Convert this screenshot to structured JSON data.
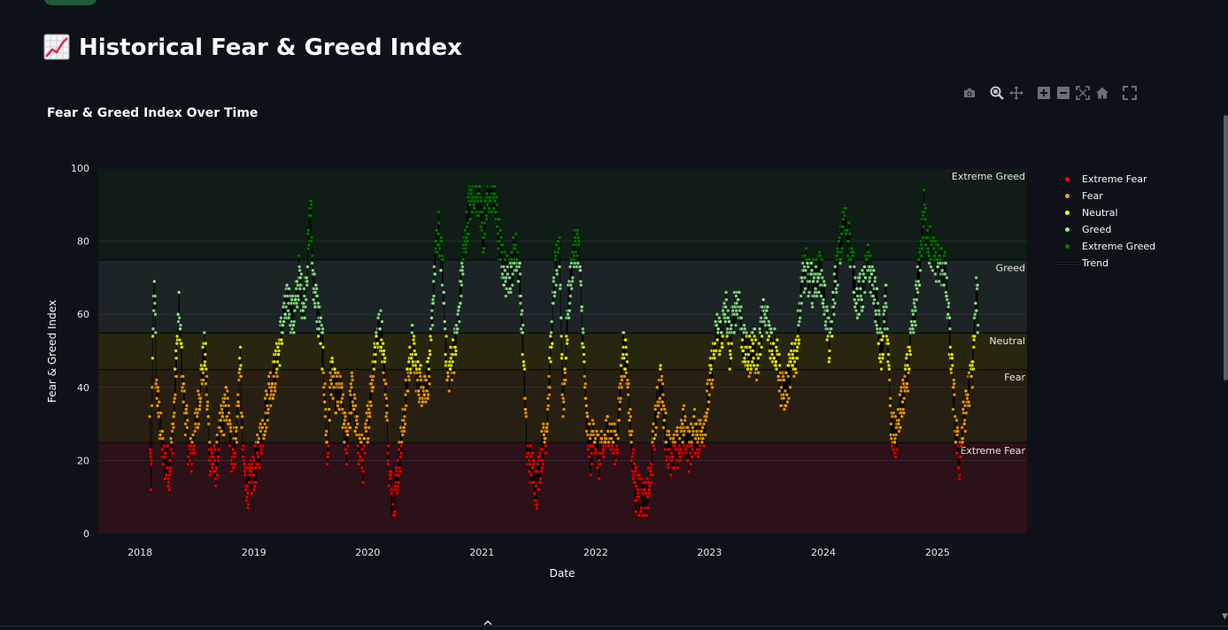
{
  "page": {
    "title": "Historical Fear & Greed Index",
    "title_icon": "chart-increasing-emoji"
  },
  "modebar": [
    {
      "name": "download-png",
      "icon": "camera-icon"
    },
    {
      "name": "zoom",
      "icon": "zoom-icon",
      "active": true
    },
    {
      "name": "pan",
      "icon": "pan-icon"
    },
    {
      "name": "zoom-in",
      "icon": "zoom-in-icon"
    },
    {
      "name": "zoom-out",
      "icon": "zoom-out-icon"
    },
    {
      "name": "autoscale",
      "icon": "autoscale-icon"
    },
    {
      "name": "reset-axes",
      "icon": "home-icon"
    },
    {
      "name": "fullscreen",
      "icon": "fullscreen-icon"
    }
  ],
  "chart_data": {
    "type": "scatter",
    "title": "Fear & Greed Index Over Time",
    "xlabel": "Date",
    "ylabel": "Fear & Greed Index",
    "ylim": [
      0,
      100
    ],
    "xlim": [
      "2017-08-20",
      "2025-10-15"
    ],
    "y_ticks": [
      "0",
      "20",
      "40",
      "60",
      "80",
      "100"
    ],
    "x_ticks": [
      {
        "date": "2018-01-01",
        "label": "2018"
      },
      {
        "date": "2019-01-01",
        "label": "2019"
      },
      {
        "date": "2020-01-01",
        "label": "2020"
      },
      {
        "date": "2021-01-01",
        "label": "2021"
      },
      {
        "date": "2022-01-01",
        "label": "2022"
      },
      {
        "date": "2023-01-01",
        "label": "2023"
      },
      {
        "date": "2024-01-01",
        "label": "2024"
      },
      {
        "date": "2025-01-01",
        "label": "2025"
      }
    ],
    "grid": true,
    "legend_position": "right",
    "zones": [
      {
        "label": "Extreme Fear",
        "y0": 0,
        "y1": 25,
        "color": "#2c1118"
      },
      {
        "label": "Fear",
        "y0": 25,
        "y1": 45,
        "color": "#261f12"
      },
      {
        "label": "Neutral",
        "y0": 45,
        "y1": 55,
        "color": "#27260f"
      },
      {
        "label": "Greed",
        "y0": 55,
        "y1": 75,
        "color": "#1c2426"
      },
      {
        "label": "Extreme Greed",
        "y0": 75,
        "y1": 100,
        "color": "#0f1d16"
      }
    ],
    "series": [
      {
        "name": "Extreme Fear",
        "color": "#ff0000"
      },
      {
        "name": "Fear",
        "color": "#ffa500"
      },
      {
        "name": "Neutral",
        "color": "#ffff00"
      },
      {
        "name": "Greed",
        "color": "#90ee90"
      },
      {
        "name": "Extreme Greed",
        "color": "#008000"
      },
      {
        "name": "Trend",
        "color": "#000000"
      }
    ],
    "anchor_points": [
      [
        "2018-02-01",
        30
      ],
      [
        "2018-02-05",
        10
      ],
      [
        "2018-02-12",
        58
      ],
      [
        "2018-02-16",
        72
      ],
      [
        "2018-02-22",
        40
      ],
      [
        "2018-03-05",
        30
      ],
      [
        "2018-03-18",
        20
      ],
      [
        "2018-04-05",
        18
      ],
      [
        "2018-04-18",
        30
      ],
      [
        "2018-05-05",
        62
      ],
      [
        "2018-05-20",
        38
      ],
      [
        "2018-06-10",
        20
      ],
      [
        "2018-06-28",
        28
      ],
      [
        "2018-07-15",
        42
      ],
      [
        "2018-07-28",
        50
      ],
      [
        "2018-08-12",
        22
      ],
      [
        "2018-09-01",
        18
      ],
      [
        "2018-09-18",
        30
      ],
      [
        "2018-10-06",
        36
      ],
      [
        "2018-10-22",
        22
      ],
      [
        "2018-11-05",
        26
      ],
      [
        "2018-11-18",
        48
      ],
      [
        "2018-11-28",
        18
      ],
      [
        "2018-12-15",
        12
      ],
      [
        "2019-01-10",
        20
      ],
      [
        "2019-02-01",
        30
      ],
      [
        "2019-02-20",
        40
      ],
      [
        "2019-03-10",
        44
      ],
      [
        "2019-04-05",
        58
      ],
      [
        "2019-04-20",
        64
      ],
      [
        "2019-05-08",
        58
      ],
      [
        "2019-05-25",
        70
      ],
      [
        "2019-06-10",
        62
      ],
      [
        "2019-06-25",
        78
      ],
      [
        "2019-07-01",
        92
      ],
      [
        "2019-07-10",
        70
      ],
      [
        "2019-07-25",
        60
      ],
      [
        "2019-08-10",
        50
      ],
      [
        "2019-08-25",
        20
      ],
      [
        "2019-09-05",
        44
      ],
      [
        "2019-09-20",
        38
      ],
      [
        "2019-10-06",
        38
      ],
      [
        "2019-10-25",
        24
      ],
      [
        "2019-11-12",
        40
      ],
      [
        "2019-11-28",
        26
      ],
      [
        "2019-12-18",
        20
      ],
      [
        "2020-01-12",
        40
      ],
      [
        "2020-01-28",
        54
      ],
      [
        "2020-02-14",
        56
      ],
      [
        "2020-02-28",
        40
      ],
      [
        "2020-03-10",
        15
      ],
      [
        "2020-03-22",
        8
      ],
      [
        "2020-04-05",
        16
      ],
      [
        "2020-04-22",
        28
      ],
      [
        "2020-05-08",
        42
      ],
      [
        "2020-05-22",
        52
      ],
      [
        "2020-06-10",
        42
      ],
      [
        "2020-06-28",
        40
      ],
      [
        "2020-07-18",
        44
      ],
      [
        "2020-08-02",
        74
      ],
      [
        "2020-08-15",
        82
      ],
      [
        "2020-08-28",
        72
      ],
      [
        "2020-09-12",
        42
      ],
      [
        "2020-09-28",
        48
      ],
      [
        "2020-10-10",
        52
      ],
      [
        "2020-10-24",
        66
      ],
      [
        "2020-11-08",
        80
      ],
      [
        "2020-11-22",
        90
      ],
      [
        "2020-12-08",
        94
      ],
      [
        "2020-12-25",
        92
      ],
      [
        "2021-01-05",
        80
      ],
      [
        "2021-01-20",
        92
      ],
      [
        "2021-02-05",
        94
      ],
      [
        "2021-02-18",
        86
      ],
      [
        "2021-03-05",
        75
      ],
      [
        "2021-03-20",
        70
      ],
      [
        "2021-04-05",
        72
      ],
      [
        "2021-04-18",
        78
      ],
      [
        "2021-05-01",
        72
      ],
      [
        "2021-05-14",
        50
      ],
      [
        "2021-05-25",
        22
      ],
      [
        "2021-06-10",
        18
      ],
      [
        "2021-06-25",
        12
      ],
      [
        "2021-07-10",
        22
      ],
      [
        "2021-07-26",
        28
      ],
      [
        "2021-08-10",
        50
      ],
      [
        "2021-08-24",
        72
      ],
      [
        "2021-09-08",
        76
      ],
      [
        "2021-09-18",
        34
      ],
      [
        "2021-10-05",
        62
      ],
      [
        "2021-10-20",
        76
      ],
      [
        "2021-11-05",
        80
      ],
      [
        "2021-11-18",
        60
      ],
      [
        "2021-12-01",
        32
      ],
      [
        "2021-12-15",
        22
      ],
      [
        "2021-12-28",
        28
      ],
      [
        "2022-01-12",
        20
      ],
      [
        "2022-01-28",
        24
      ],
      [
        "2022-02-10",
        30
      ],
      [
        "2022-02-25",
        24
      ],
      [
        "2022-03-12",
        26
      ],
      [
        "2022-03-30",
        52
      ],
      [
        "2022-04-12",
        44
      ],
      [
        "2022-04-28",
        22
      ],
      [
        "2022-05-10",
        12
      ],
      [
        "2022-05-25",
        10
      ],
      [
        "2022-06-10",
        8
      ],
      [
        "2022-06-25",
        14
      ],
      [
        "2022-07-12",
        32
      ],
      [
        "2022-07-28",
        42
      ],
      [
        "2022-08-12",
        28
      ],
      [
        "2022-08-26",
        22
      ],
      [
        "2022-09-12",
        22
      ],
      [
        "2022-09-28",
        24
      ],
      [
        "2022-10-12",
        30
      ],
      [
        "2022-10-28",
        22
      ],
      [
        "2022-11-12",
        28
      ],
      [
        "2022-11-28",
        26
      ],
      [
        "2022-12-15",
        30
      ],
      [
        "2023-01-10",
        46
      ],
      [
        "2023-01-25",
        56
      ],
      [
        "2023-02-08",
        54
      ],
      [
        "2023-02-22",
        62
      ],
      [
        "2023-03-08",
        50
      ],
      [
        "2023-03-22",
        62
      ],
      [
        "2023-04-05",
        64
      ],
      [
        "2023-04-18",
        52
      ],
      [
        "2023-05-05",
        48
      ],
      [
        "2023-05-20",
        52
      ],
      [
        "2023-06-05",
        46
      ],
      [
        "2023-06-20",
        60
      ],
      [
        "2023-07-05",
        58
      ],
      [
        "2023-07-20",
        52
      ],
      [
        "2023-08-05",
        50
      ],
      [
        "2023-08-20",
        38
      ],
      [
        "2023-09-05",
        40
      ],
      [
        "2023-09-22",
        46
      ],
      [
        "2023-10-08",
        50
      ],
      [
        "2023-10-24",
        70
      ],
      [
        "2023-11-08",
        72
      ],
      [
        "2023-11-24",
        68
      ],
      [
        "2023-12-08",
        70
      ],
      [
        "2023-12-22",
        72
      ],
      [
        "2024-01-08",
        62
      ],
      [
        "2024-01-22",
        50
      ],
      [
        "2024-02-08",
        70
      ],
      [
        "2024-02-22",
        76
      ],
      [
        "2024-03-06",
        86
      ],
      [
        "2024-03-20",
        82
      ],
      [
        "2024-04-05",
        72
      ],
      [
        "2024-04-18",
        64
      ],
      [
        "2024-05-05",
        66
      ],
      [
        "2024-05-20",
        74
      ],
      [
        "2024-06-05",
        70
      ],
      [
        "2024-06-20",
        62
      ],
      [
        "2024-07-05",
        48
      ],
      [
        "2024-07-20",
        64
      ],
      [
        "2024-08-05",
        28
      ],
      [
        "2024-08-20",
        26
      ],
      [
        "2024-09-05",
        34
      ],
      [
        "2024-09-20",
        40
      ],
      [
        "2024-10-05",
        50
      ],
      [
        "2024-10-20",
        60
      ],
      [
        "2024-11-05",
        74
      ],
      [
        "2024-11-18",
        88
      ],
      [
        "2024-12-02",
        80
      ],
      [
        "2024-12-18",
        76
      ],
      [
        "2025-01-08",
        74
      ],
      [
        "2025-01-25",
        72
      ],
      [
        "2025-02-12",
        50
      ],
      [
        "2025-02-28",
        28
      ],
      [
        "2025-03-12",
        20
      ],
      [
        "2025-03-25",
        30
      ],
      [
        "2025-04-08",
        38
      ],
      [
        "2025-04-22",
        44
      ],
      [
        "2025-05-06",
        66
      ],
      [
        "2025-05-12",
        58
      ]
    ]
  }
}
